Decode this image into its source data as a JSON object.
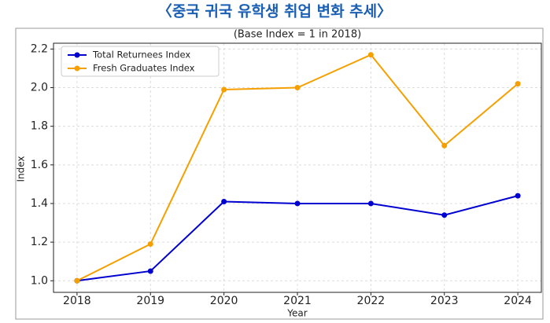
{
  "header": {
    "title": "〈중국 귀국 유학생 취업 변화 추세〉"
  },
  "chart_data": {
    "type": "line",
    "title": "(Base Index = 1 in 2018)",
    "x_label": "Year",
    "y_label": "Index",
    "x": [
      2018,
      2019,
      2020,
      2021,
      2022,
      2023,
      2024
    ],
    "series": [
      {
        "name": "Total Returnees Index",
        "color": "#0000d0",
        "values": [
          1.0,
          1.05,
          1.41,
          1.4,
          1.4,
          1.34,
          1.44
        ]
      },
      {
        "name": "Fresh Graduates Index",
        "color": "#f5a000",
        "values": [
          1.0,
          1.19,
          1.99,
          2.0,
          2.17,
          1.7,
          2.02
        ]
      }
    ],
    "xlim": [
      2017.68,
      2024.32
    ],
    "xticks": [
      2018,
      2019,
      2020,
      2021,
      2022,
      2023,
      2024
    ],
    "ylim": [
      0.94,
      2.23
    ],
    "yticks": [
      {
        "value": 1,
        "label": "1.0"
      },
      1.2,
      1.4,
      1.6,
      1.8,
      {
        "value": 2,
        "label": "2.0"
      },
      2.2
    ],
    "grid": true,
    "legend": "upper left"
  }
}
